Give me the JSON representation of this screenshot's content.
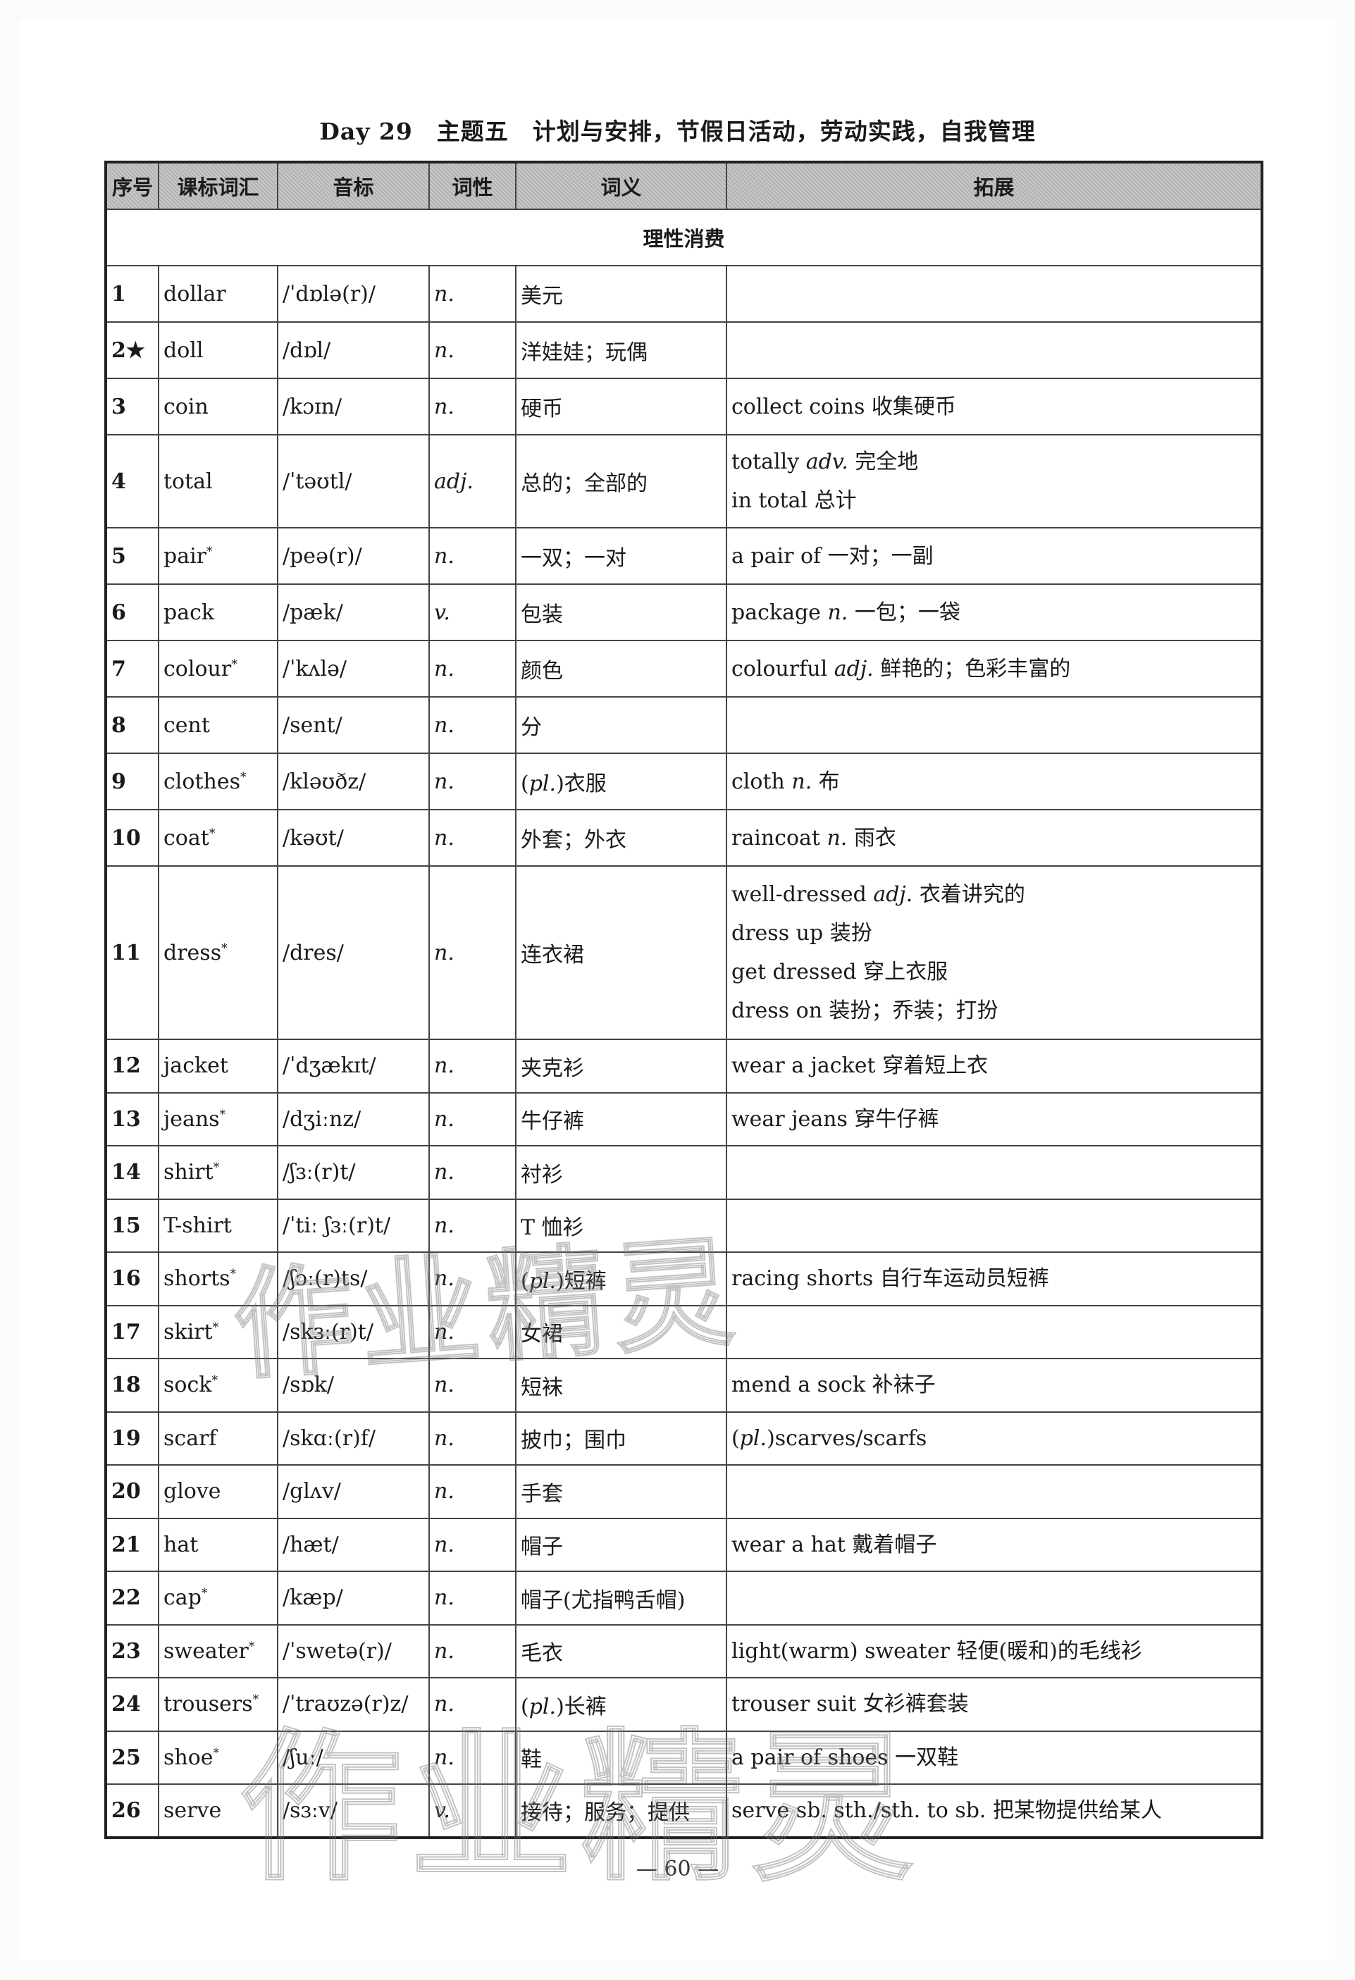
{
  "title": "Day 29　主题五　计划与安排，节假日活动，劳动实践，自我管理",
  "headers": [
    "序号",
    "课标词汇",
    "音标",
    "词性",
    "词义",
    "拓展"
  ],
  "section": "理性消费",
  "rows": [
    {
      "num": "1",
      "word": "dollar",
      "star": "",
      "ipa": "/ˈdɒlə(r)/",
      "pos": "n.",
      "meaning": "美元",
      "ext": []
    },
    {
      "num": "2★",
      "word": "doll",
      "star": "",
      "ipa": "/dɒl/",
      "pos": "n.",
      "meaning": "洋娃娃；玩偶",
      "ext": []
    },
    {
      "num": "3",
      "word": "coin",
      "star": "",
      "ipa": "/kɔɪn/",
      "pos": "n.",
      "meaning": "硬币",
      "ext": [
        "collect coins 收集硬币"
      ]
    },
    {
      "num": "4",
      "word": "total",
      "star": "",
      "ipa": "/ˈtəʊtl/",
      "pos": "adj.",
      "meaning": "总的；全部的",
      "ext": [
        "totally adv. 完全地",
        "in total 总计"
      ]
    },
    {
      "num": "5",
      "word": "pair",
      "star": "*",
      "ipa": "/peə(r)/",
      "pos": "n.",
      "meaning": "一双；一对",
      "ext": [
        "a pair of 一对；一副"
      ]
    },
    {
      "num": "6",
      "word": "pack",
      "star": "",
      "ipa": "/pæk/",
      "pos": "v.",
      "meaning": "包装",
      "ext": [
        "package n. 一包；一袋"
      ]
    },
    {
      "num": "7",
      "word": "colour",
      "star": "*",
      "ipa": "/ˈkʌlə/",
      "pos": "n.",
      "meaning": "颜色",
      "ext": [
        "colourful adj. 鲜艳的；色彩丰富的"
      ]
    },
    {
      "num": "8",
      "word": "cent",
      "star": "",
      "ipa": "/sent/",
      "pos": "n.",
      "meaning": "分",
      "ext": []
    },
    {
      "num": "9",
      "word": "clothes",
      "star": "*",
      "ipa": "/kləʊðz/",
      "pos": "n.",
      "meaning": "(pl.)衣服",
      "ext": [
        "cloth n. 布"
      ]
    },
    {
      "num": "10",
      "word": "coat",
      "star": "*",
      "ipa": "/kəʊt/",
      "pos": "n.",
      "meaning": "外套；外衣",
      "ext": [
        "raincoat n. 雨衣"
      ]
    },
    {
      "num": "11",
      "word": "dress",
      "star": "*",
      "ipa": "/dres/",
      "pos": "n.",
      "meaning": "连衣裙",
      "ext": [
        "well-dressed adj. 衣着讲究的",
        "dress up 装扮",
        "get dressed 穿上衣服",
        "dress on 装扮；乔装；打扮"
      ]
    },
    {
      "num": "12",
      "word": "jacket",
      "star": "",
      "ipa": "/ˈdʒækɪt/",
      "pos": "n.",
      "meaning": "夹克衫",
      "ext": [
        "wear a jacket 穿着短上衣"
      ]
    },
    {
      "num": "13",
      "word": "jeans",
      "star": "*",
      "ipa": "/dʒiːnz/",
      "pos": "n.",
      "meaning": "牛仔裤",
      "ext": [
        "wear jeans 穿牛仔裤"
      ]
    },
    {
      "num": "14",
      "word": "shirt",
      "star": "*",
      "ipa": "/ʃɜː(r)t/",
      "pos": "n.",
      "meaning": "衬衫",
      "ext": []
    },
    {
      "num": "15",
      "word": "T-shirt",
      "star": "",
      "ipa": "/ˈtiː ʃɜː(r)t/",
      "pos": "n.",
      "meaning": "T 恤衫",
      "ext": []
    },
    {
      "num": "16",
      "word": "shorts",
      "star": "*",
      "ipa": "/ʃɔː(r)ts/",
      "pos": "n.",
      "meaning": "(pl.)短裤",
      "ext": [
        "racing shorts 自行车运动员短裤"
      ]
    },
    {
      "num": "17",
      "word": "skirt",
      "star": "*",
      "ipa": "/skɜː(r)t/",
      "pos": "n.",
      "meaning": "女裙",
      "ext": []
    },
    {
      "num": "18",
      "word": "sock",
      "star": "*",
      "ipa": "/sɒk/",
      "pos": "n.",
      "meaning": "短袜",
      "ext": [
        "mend a sock 补袜子"
      ]
    },
    {
      "num": "19",
      "word": "scarf",
      "star": "",
      "ipa": "/skɑː(r)f/",
      "pos": "n.",
      "meaning": "披巾；围巾",
      "ext": [
        "(pl.)scarves/scarfs"
      ]
    },
    {
      "num": "20",
      "word": "glove",
      "star": "",
      "ipa": "/glʌv/",
      "pos": "n.",
      "meaning": "手套",
      "ext": []
    },
    {
      "num": "21",
      "word": "hat",
      "star": "",
      "ipa": "/hæt/",
      "pos": "n.",
      "meaning": "帽子",
      "ext": [
        "wear a hat 戴着帽子"
      ]
    },
    {
      "num": "22",
      "word": "cap",
      "star": "*",
      "ipa": "/kæp/",
      "pos": "n.",
      "meaning": "帽子(尤指鸭舌帽)",
      "ext": []
    },
    {
      "num": "23",
      "word": "sweater",
      "star": "*",
      "ipa": "/ˈswetə(r)/",
      "pos": "n.",
      "meaning": "毛衣",
      "ext": [
        "light(warm) sweater 轻便(暖和)的毛线衫"
      ]
    },
    {
      "num": "24",
      "word": "trousers",
      "star": "*",
      "ipa": "/ˈtraʊzə(r)z/",
      "pos": "n.",
      "meaning": "(pl.)长裤",
      "ext": [
        "trouser suit 女衫裤套装"
      ]
    },
    {
      "num": "25",
      "word": "shoe",
      "star": "*",
      "ipa": "/ʃuː/",
      "pos": "n.",
      "meaning": "鞋",
      "ext": [
        "a pair of shoes 一双鞋"
      ]
    },
    {
      "num": "26",
      "word": "serve",
      "star": "",
      "ipa": "/sɜːv/",
      "pos": "v.",
      "meaning": "接待；服务；提供",
      "ext": [
        "serve sb. sth./sth. to sb. 把某物提供给某人"
      ]
    }
  ],
  "page_number": "— 60 —",
  "watermark": "作业精灵"
}
